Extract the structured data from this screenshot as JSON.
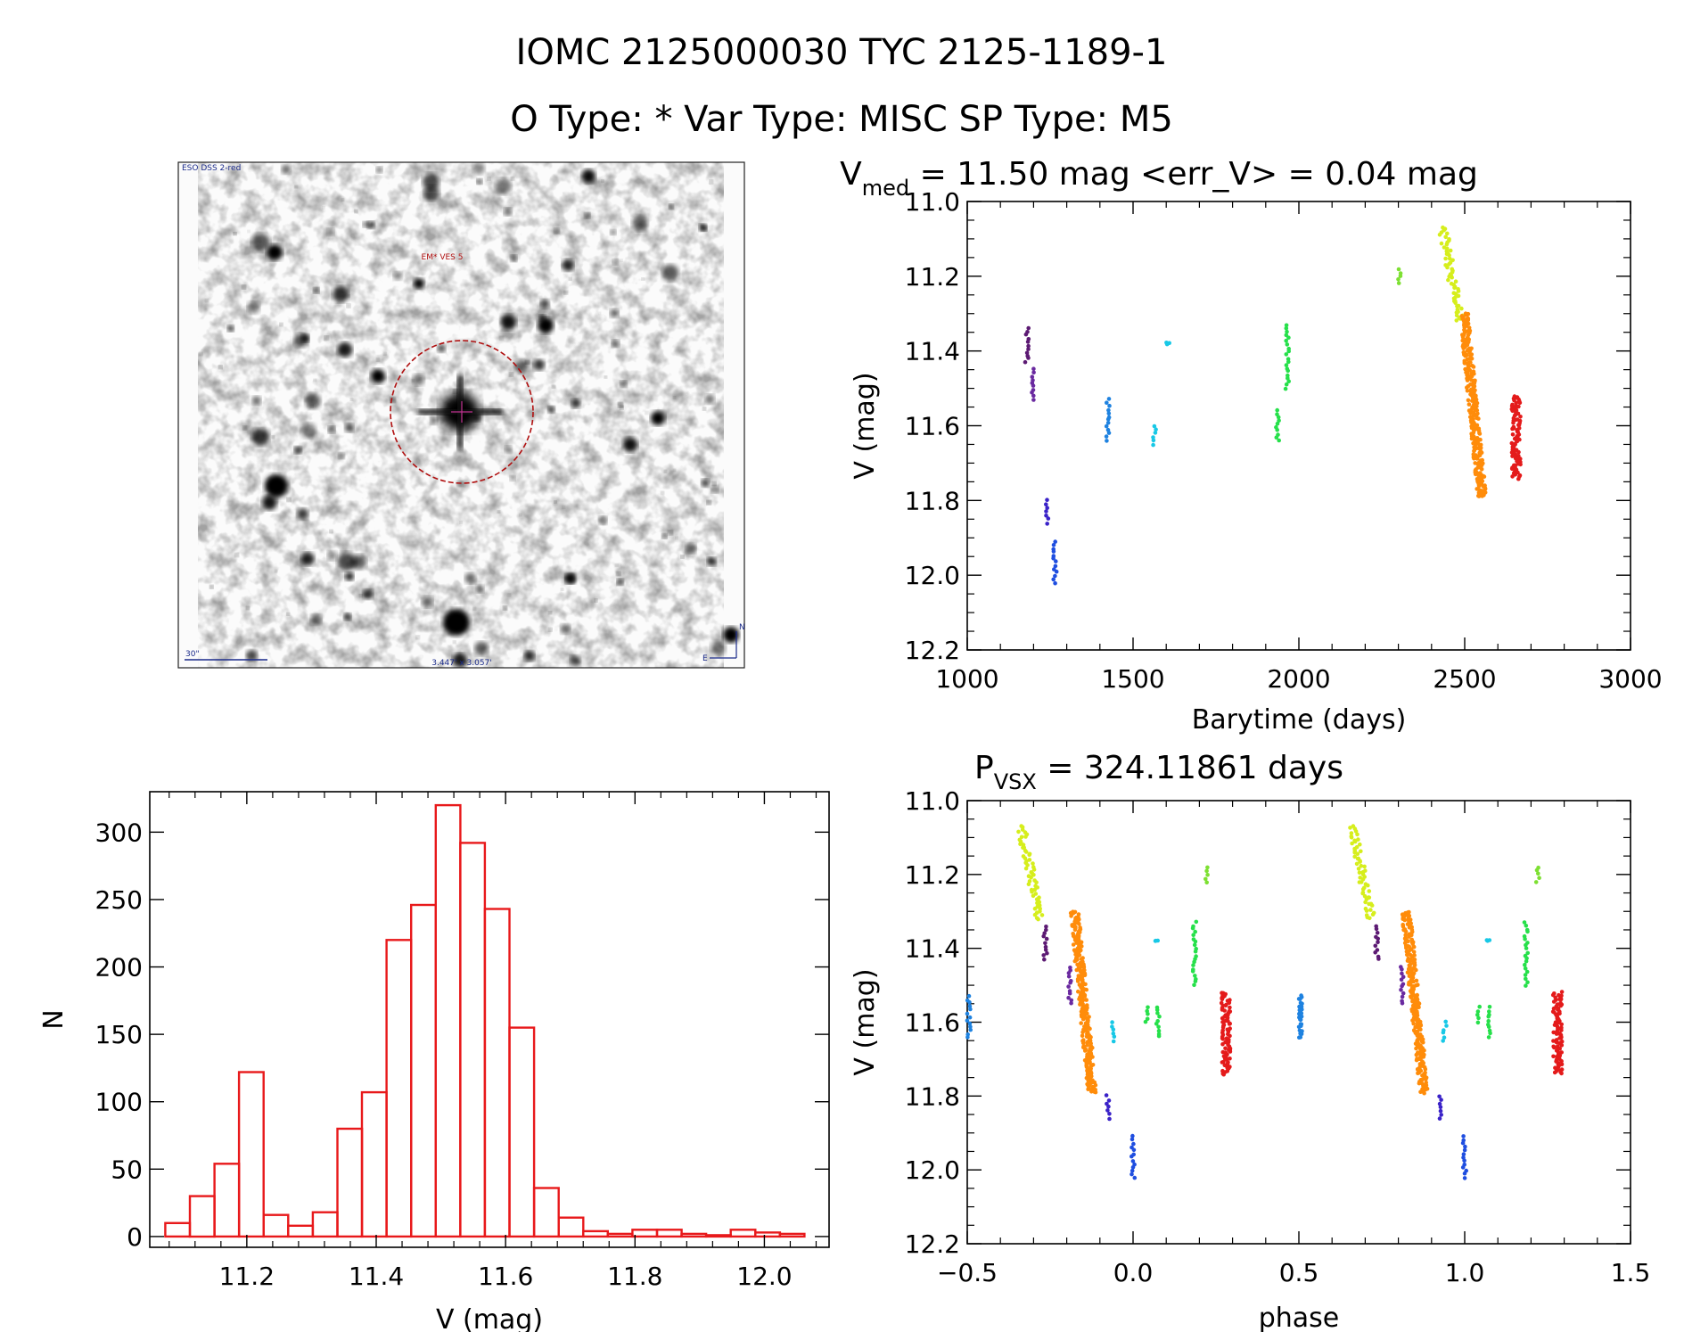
{
  "figure": {
    "title_line1": "IOMC 2125000030   TYC 2125-1189-1",
    "title_line2": "O Type: *  Var Type: MISC  SP Type: M5"
  },
  "finder": {
    "label_survey": "ESO DSS 2-red",
    "label_target": "EM* VES 5",
    "label_scale": "30\"",
    "label_fov": "3.447' x 3.057'",
    "label_north": "N",
    "label_east": "E"
  },
  "colors": {
    "hist": "#e8191b",
    "violet": "#5c1a73",
    "purple": "#6a2aa0",
    "indigo": "#3a22c8",
    "blue": "#1f4ee0",
    "skyblue": "#1e82e0",
    "cyan": "#18c8e6",
    "green": "#26e04a",
    "lime": "#7de032",
    "yellow": "#d6ee1c",
    "orange": "#ff8c0a",
    "red": "#e41b1b"
  },
  "chart_data": [
    {
      "type": "scatter",
      "id": "lightcurve",
      "title_main": "V",
      "title_sub": "med",
      "title_rest": " = 11.50 mag <err_V> = 0.04 mag",
      "xlabel": "Barytime (days)",
      "ylabel": "V (mag)",
      "xlim": [
        1000,
        3000
      ],
      "ylim": [
        11.0,
        12.2
      ],
      "y_inverted": true,
      "xticks": [
        "1000",
        "1500",
        "2000",
        "2500",
        "3000"
      ],
      "yticks": [
        "11.0",
        "11.2",
        "11.4",
        "11.6",
        "11.8",
        "12.0",
        "12.2"
      ],
      "series": [
        {
          "name": "s1",
          "color": "violet",
          "x": 1180,
          "ymin": 11.34,
          "ymax": 11.43
        },
        {
          "name": "s2",
          "color": "purple",
          "x": 1200,
          "ymin": 11.45,
          "ymax": 11.53
        },
        {
          "name": "s3",
          "color": "indigo",
          "x": 1240,
          "ymin": 11.8,
          "ymax": 11.86
        },
        {
          "name": "s4",
          "color": "blue",
          "x": 1265,
          "ymin": 11.91,
          "ymax": 12.02
        },
        {
          "name": "s5",
          "color": "skyblue",
          "x": 1425,
          "ymin": 11.53,
          "ymax": 11.64
        },
        {
          "name": "s6",
          "color": "cyan",
          "x": 1565,
          "ymin": 11.6,
          "ymax": 11.65
        },
        {
          "name": "s7",
          "color": "cyan",
          "x": 1605,
          "ymin": 11.38,
          "ymax": 11.38
        },
        {
          "name": "s8",
          "color": "green",
          "x": 1935,
          "ymin": 11.56,
          "ymax": 11.64
        },
        {
          "name": "s9",
          "color": "green",
          "x": 1965,
          "ymin": 11.33,
          "ymax": 11.5
        },
        {
          "name": "s10",
          "color": "lime",
          "x": 2305,
          "ymin": 11.18,
          "ymax": 11.22
        },
        {
          "name": "s11",
          "color": "yellow",
          "x": 2460,
          "ymin": 11.07,
          "ymax": 11.32
        },
        {
          "name": "s12",
          "color": "orange",
          "x": 2525,
          "ymin": 11.3,
          "ymax": 11.79
        },
        {
          "name": "s13",
          "color": "red",
          "x": 2655,
          "ymin": 11.52,
          "ymax": 11.74
        }
      ]
    },
    {
      "type": "bar",
      "id": "histogram",
      "xlabel": "V (mag)",
      "ylabel": "N",
      "xlim": [
        11.05,
        12.1
      ],
      "ylim": [
        -8,
        330
      ],
      "xticks": [
        "11.2",
        "11.4",
        "11.6",
        "11.8",
        "12.0"
      ],
      "yticks": [
        "0",
        "50",
        "100",
        "150",
        "200",
        "250",
        "300"
      ],
      "bin_width": 0.038,
      "bin_start": 11.074,
      "values": [
        10,
        30,
        54,
        122,
        16,
        8,
        18,
        80,
        107,
        220,
        246,
        320,
        292,
        243,
        155,
        36,
        14,
        4,
        2,
        5,
        5,
        2,
        1,
        5,
        3,
        2
      ]
    },
    {
      "type": "scatter",
      "id": "phased",
      "title_main": "P",
      "title_sub": "VSX",
      "title_rest": " = 324.11861 days",
      "xlabel": "phase",
      "ylabel": "V (mag)",
      "xlim": [
        -0.5,
        1.5
      ],
      "ylim": [
        11.0,
        12.2
      ],
      "y_inverted": true,
      "xticks": [
        "-0.5",
        "0.0",
        "0.5",
        "1.0",
        "1.5"
      ],
      "yticks": [
        "11.0",
        "11.2",
        "11.4",
        "11.6",
        "11.8",
        "12.0",
        "12.2"
      ],
      "series": [
        {
          "name": "p1",
          "color": "violet",
          "x": -0.265,
          "ymin": 11.34,
          "ymax": 11.43
        },
        {
          "name": "p2",
          "color": "purple",
          "x": -0.19,
          "ymin": 11.45,
          "ymax": 11.55
        },
        {
          "name": "p3",
          "color": "indigo",
          "x": -0.075,
          "ymin": 11.8,
          "ymax": 11.86
        },
        {
          "name": "p4",
          "color": "blue",
          "x": 0.0,
          "ymin": 11.91,
          "ymax": 12.02
        },
        {
          "name": "p5",
          "color": "skyblue",
          "x": -0.495,
          "ymin": 11.53,
          "ymax": 11.64
        },
        {
          "name": "p6",
          "color": "cyan",
          "x": -0.06,
          "ymin": 11.6,
          "ymax": 11.65
        },
        {
          "name": "p7",
          "color": "cyan",
          "x": 0.07,
          "ymin": 11.38,
          "ymax": 11.38
        },
        {
          "name": "p8",
          "color": "green",
          "x": 0.075,
          "ymin": 11.56,
          "ymax": 11.64
        },
        {
          "name": "p9",
          "color": "green",
          "x": 0.185,
          "ymin": 11.33,
          "ymax": 11.5
        },
        {
          "name": "p10",
          "color": "lime",
          "x": 0.22,
          "ymin": 11.18,
          "ymax": 11.22
        },
        {
          "name": "p11",
          "color": "yellow",
          "x": -0.31,
          "ymin": 11.07,
          "ymax": 11.32
        },
        {
          "name": "p12",
          "color": "orange",
          "x": -0.15,
          "ymin": 11.3,
          "ymax": 11.79
        },
        {
          "name": "p13",
          "color": "red",
          "x": 0.28,
          "ymin": 11.52,
          "ymax": 11.74
        },
        {
          "name": "p14",
          "color": "green",
          "x": 0.04,
          "ymin": 11.56,
          "ymax": 11.6
        },
        {
          "name": "p15",
          "color": "skyblue",
          "x": 0.505,
          "ymin": 11.53,
          "ymax": 11.64
        }
      ]
    }
  ]
}
